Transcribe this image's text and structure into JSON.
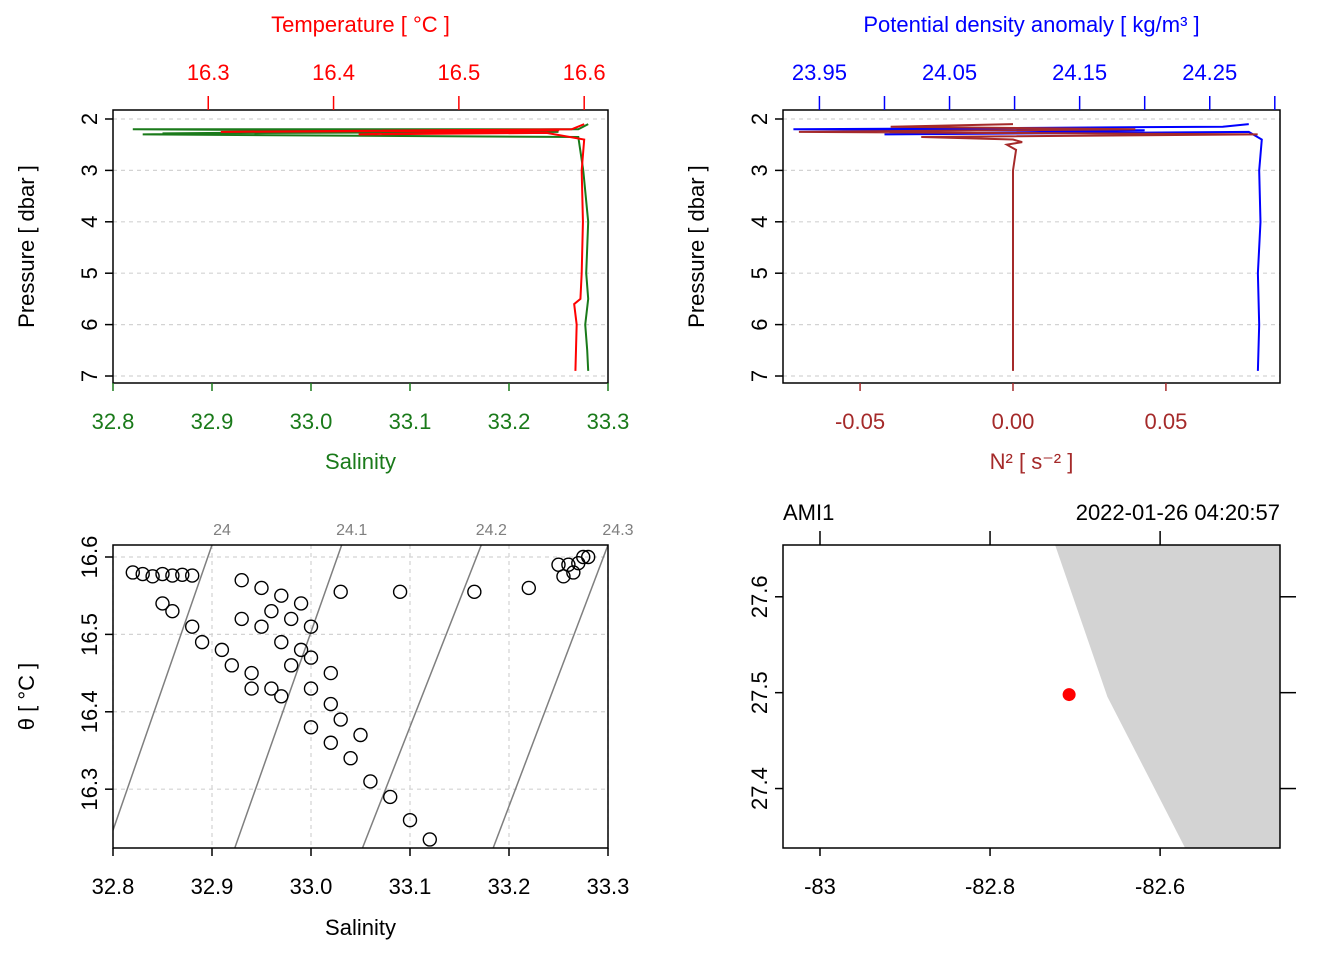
{
  "chart_data": [
    {
      "type": "profile",
      "xlabel": "Salinity",
      "x2label": "Temperature [ °C ]",
      "ylabel": "Pressure [ dbar ]",
      "xlim": [
        32.8,
        33.3
      ],
      "xticks": [
        32.8,
        32.9,
        {
          "value": 33,
          "label": "33.0"
        },
        33.1,
        33.2,
        33.3
      ],
      "x2lim": [
        16.224,
        16.619
      ],
      "x2ticks": [
        16.3,
        16.4,
        16.5,
        16.6
      ],
      "ylim": [
        7.136,
        1.825
      ],
      "yticks": [
        2,
        3,
        4,
        5,
        6,
        7
      ],
      "grid": "y",
      "xcolor": "#1a7a1a",
      "x2color": "#ff0000",
      "series": [
        {
          "color": "#1a7a1a",
          "axis": "x",
          "x": [
            33.28,
            33.27,
            32.82,
            33.25,
            32.85,
            33.2,
            32.83,
            33.27,
            33.275,
            33.28,
            33.278,
            33.28,
            33.277,
            33.279,
            33.28
          ],
          "y": [
            2.1,
            2.2,
            2.2,
            2.25,
            2.28,
            2.22,
            2.3,
            2.35,
            3,
            4,
            5,
            5.5,
            6,
            6.5,
            6.9
          ]
        },
        {
          "color": "#ff0000",
          "axis": "x2",
          "x": [
            16.6,
            16.59,
            16.31,
            16.58,
            16.42,
            16.57,
            16.6,
            16.598,
            16.599,
            16.598,
            16.597,
            16.592,
            16.594,
            16.593
          ],
          "y": [
            2.1,
            2.2,
            2.25,
            2.22,
            2.3,
            2.27,
            2.4,
            3,
            4,
            5,
            5.5,
            5.6,
            6,
            6.9
          ]
        }
      ]
    },
    {
      "type": "profile",
      "xlabel": "N² [ s⁻² ]",
      "x2label": "Potential density anomaly [ kg/m³ ]",
      "ylabel": "Pressure [ dbar ]",
      "xlim": [
        -0.0752,
        0.0873
      ],
      "xticks": [
        -0.05,
        {
          "value": 0,
          "label": "0.00"
        },
        0.05
      ],
      "x2lim": [
        23.922,
        24.304
      ],
      "x2ticks": [
        23.95,
        {
          "value": 24,
          "label": null
        },
        24.05,
        {
          "value": 24.1,
          "label": null
        },
        24.15,
        {
          "value": 24.2,
          "label": null
        },
        24.25,
        {
          "value": 24.3,
          "label": null
        }
      ],
      "ylim": [
        7.136,
        1.825
      ],
      "yticks": [
        2,
        3,
        4,
        5,
        6,
        7
      ],
      "grid": "y",
      "xcolor": "#a52a2a",
      "x2color": "#0000ff",
      "series": [
        {
          "color": "#0000ff",
          "axis": "x2",
          "x": [
            24.28,
            24.26,
            23.93,
            24.2,
            24.0,
            24.28,
            24.29,
            24.288,
            24.289,
            24.287,
            24.288,
            24.287
          ],
          "y": [
            2.1,
            2.15,
            2.2,
            2.22,
            2.3,
            2.25,
            2.4,
            3,
            4,
            5,
            6,
            6.9
          ]
        },
        {
          "color": "#a52a2a",
          "axis": "x",
          "x": [
            0,
            -0.04,
            0.04,
            -0.07,
            0.08,
            -0.03,
            0,
            0.003,
            -0.002,
            0.001,
            0,
            0,
            0,
            0
          ],
          "y": [
            2.1,
            2.15,
            2.2,
            2.25,
            2.3,
            2.35,
            2.4,
            2.45,
            2.5,
            2.6,
            3,
            5.5,
            6,
            6.9
          ]
        }
      ]
    },
    {
      "type": "ts",
      "xlabel": "Salinity",
      "ylabel": "θ [ °C ]",
      "xlim": [
        32.8,
        33.3
      ],
      "xticks": [
        32.8,
        32.9,
        {
          "value": 33,
          "label": "33.0"
        },
        33.1,
        33.2,
        33.3
      ],
      "ylim": [
        16.224,
        16.6155
      ],
      "yticks": [
        16.3,
        16.4,
        16.5,
        16.6
      ],
      "grid": "both",
      "color": "#000000",
      "x": [
        32.82,
        32.83,
        32.84,
        32.85,
        32.86,
        32.87,
        32.88,
        32.85,
        32.88,
        32.91,
        32.94,
        32.97,
        33.0,
        33.02,
        33.04,
        33.06,
        33.08,
        33.1,
        33.12,
        32.86,
        32.89,
        32.92,
        32.94,
        32.96,
        32.93,
        32.95,
        32.97,
        32.99,
        32.96,
        32.98,
        33.0,
        32.95,
        32.97,
        32.99,
        33.0,
        33.02,
        32.93,
        32.98,
        33.0,
        33.02,
        33.03,
        33.05,
        33.03,
        33.09,
        33.165,
        33.22,
        33.25,
        33.26,
        33.27,
        33.275,
        33.28,
        33.265,
        33.255
      ],
      "y": [
        16.58,
        16.578,
        16.575,
        16.578,
        16.576,
        16.577,
        16.576,
        16.54,
        16.51,
        16.48,
        16.45,
        16.42,
        16.38,
        16.36,
        16.34,
        16.31,
        16.29,
        16.26,
        16.235,
        16.53,
        16.49,
        16.46,
        16.43,
        16.43,
        16.57,
        16.56,
        16.55,
        16.54,
        16.53,
        16.52,
        16.51,
        16.51,
        16.49,
        16.48,
        16.47,
        16.45,
        16.52,
        16.46,
        16.43,
        16.41,
        16.39,
        16.37,
        16.555,
        16.555,
        16.555,
        16.56,
        16.59,
        16.59,
        16.592,
        16.6,
        16.6,
        16.58,
        16.575
      ],
      "isopycnals": [
        {
          "label": 24,
          "salinity": [
            32.9,
            32.8
          ],
          "theta": [
            16.6155,
            16.247
          ]
        },
        {
          "label": 24.1,
          "salinity": [
            33.031,
            32.923
          ],
          "theta": [
            16.6155,
            16.224
          ]
        },
        {
          "label": 24.2,
          "salinity": [
            33.172,
            33.052
          ],
          "theta": [
            16.6155,
            16.224
          ]
        },
        {
          "label": 24.3,
          "salinity": [
            33.3,
            33.184
          ],
          "theta": [
            16.6155,
            16.224
          ]
        }
      ]
    },
    {
      "type": "map",
      "station": "AMI1",
      "time": "2022-01-26 04:20:57",
      "xlim": [
        -83.0435,
        -82.459
      ],
      "xticks": [
        -83,
        -82.8,
        -82.6
      ],
      "ylim": [
        27.338,
        27.654
      ],
      "yticks": [
        27.4,
        27.5,
        27.6
      ],
      "land_color": "#d3d3d3",
      "point_color": "#ff0000",
      "coast_lon": [
        -82.7235,
        -82.662,
        -82.5706,
        -82.459,
        -82.459
      ],
      "coast_lat": [
        27.654,
        27.4958,
        27.338,
        27.338,
        27.654
      ],
      "station_lon": -82.707,
      "station_lat": 27.498
    }
  ]
}
